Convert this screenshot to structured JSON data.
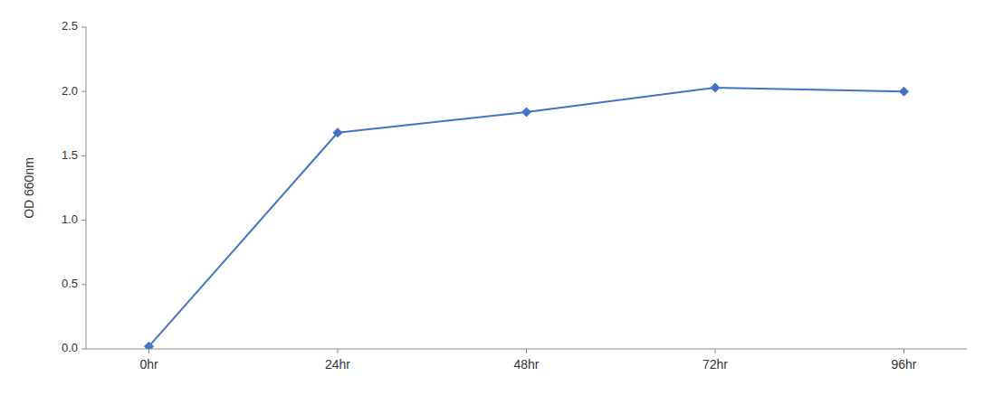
{
  "chart_data": {
    "type": "line",
    "ylabel": "OD 660nm",
    "x": [
      0,
      24,
      48,
      72,
      96
    ],
    "values": [
      0.02,
      1.68,
      1.84,
      2.03,
      2.0
    ],
    "color": "#4472C4",
    "marker": "diamond",
    "xlim": [
      -8,
      104
    ],
    "xticks": [
      {
        "value": 0,
        "label": "0hr"
      },
      {
        "value": 24,
        "label": "24hr"
      },
      {
        "value": 48,
        "label": "48hr"
      },
      {
        "value": 72,
        "label": "72hr"
      },
      {
        "value": 96,
        "label": "96hr"
      }
    ],
    "ylim": [
      0,
      2.5
    ],
    "yticks": [
      {
        "value": 0,
        "label": "0.0"
      },
      0.5,
      {
        "value": 1,
        "label": "1.0"
      },
      1.5,
      {
        "value": 2,
        "label": "2.0"
      },
      2.5
    ],
    "grid": false
  }
}
